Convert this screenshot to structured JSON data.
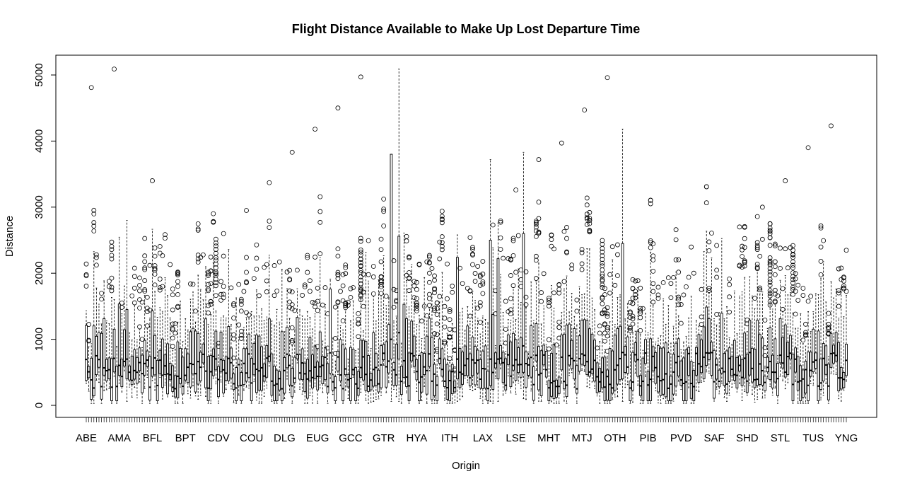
{
  "chart_data": {
    "type": "boxplot",
    "title": "Flight Distance Available to Make Up Lost Departure Time",
    "xlabel": "Origin",
    "ylabel": "Distance",
    "ylim": [
      -180,
      5250
    ],
    "y_ticks": [
      0,
      1000,
      2000,
      3000,
      4000,
      5000
    ],
    "n_categories": 300,
    "x_tick_labels": [
      "ABE",
      "AMA",
      "BFL",
      "BPT",
      "CDV",
      "COU",
      "DLG",
      "EUG",
      "GCC",
      "GTR",
      "HYA",
      "ITH",
      "LAX",
      "LSE",
      "MHT",
      "MTJ",
      "OTH",
      "PIB",
      "PVD",
      "SAF",
      "SHD",
      "STL",
      "TUS",
      "YNG"
    ],
    "grid": false,
    "legend": "none",
    "highlighted_boxes": [
      {
        "label_after": "GTR",
        "min": 60,
        "q1": 700,
        "median": 1000,
        "q3": 3800,
        "max": 3800
      },
      {
        "label_after": "GTR",
        "min": 60,
        "q1": 700,
        "median": 1100,
        "q3": 2560,
        "max": 5090
      },
      {
        "label_after": "LAX",
        "min": 60,
        "q1": 300,
        "median": 700,
        "q3": 2500,
        "max": 3720
      },
      {
        "label_after": "LAX",
        "min": 60,
        "q1": 400,
        "median": 700,
        "q3": 2220,
        "max": 2760
      },
      {
        "label_after": "LSE",
        "min": 100,
        "q1": 500,
        "median": 900,
        "q3": 2600,
        "max": 3830
      },
      {
        "label_after": "OTH",
        "min": 60,
        "q1": 400,
        "median": 800,
        "q3": 2450,
        "max": 4180
      },
      {
        "label_after": "AMA",
        "min": 60,
        "q1": 400,
        "median": 700,
        "q3": 1450,
        "max": 2800
      },
      {
        "label_after": "ITH",
        "min": 60,
        "q1": 400,
        "median": 700,
        "q3": 2240,
        "max": 2580
      }
    ],
    "notable_outliers": [
      5090,
      4970,
      4960,
      4810,
      4500,
      4470,
      4230,
      4180,
      3970,
      3900,
      3830,
      3720,
      3400,
      3370,
      3260,
      3000,
      2950,
      2730,
      2700,
      2600,
      2540,
      2420,
      2240,
      2140,
      2000,
      1800,
      1500
    ]
  }
}
